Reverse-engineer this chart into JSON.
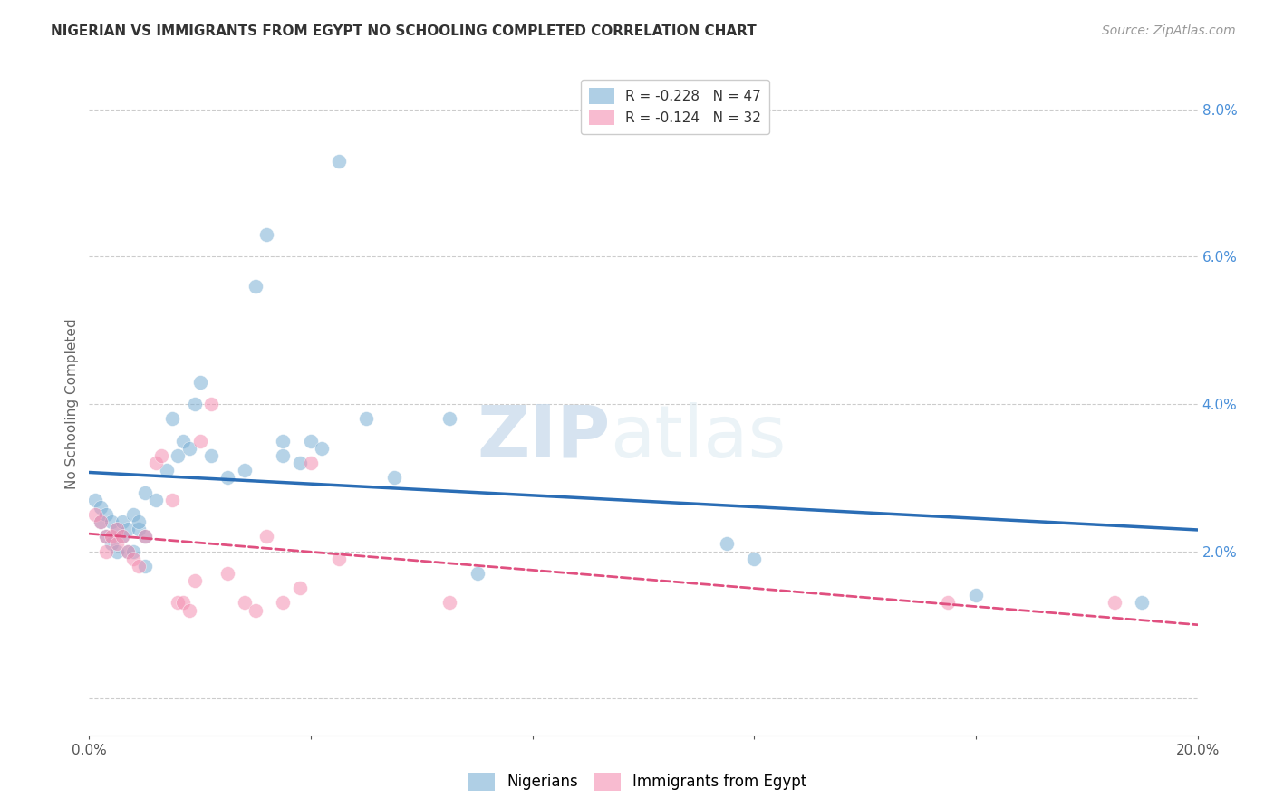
{
  "title": "NIGERIAN VS IMMIGRANTS FROM EGYPT NO SCHOOLING COMPLETED CORRELATION CHART",
  "source": "Source: ZipAtlas.com",
  "ylabel": "No Schooling Completed",
  "xlim": [
    0.0,
    0.2
  ],
  "ylim": [
    -0.005,
    0.085
  ],
  "xticks": [
    0.0,
    0.04,
    0.08,
    0.12,
    0.16,
    0.2
  ],
  "yticks": [
    0.0,
    0.02,
    0.04,
    0.06,
    0.08
  ],
  "ytick_labels": [
    "",
    "2.0%",
    "4.0%",
    "6.0%",
    "8.0%"
  ],
  "xtick_labels": [
    "0.0%",
    "",
    "",
    "",
    "",
    "20.0%"
  ],
  "nigerian_color": "#7bafd4",
  "egypt_color": "#f48fb1",
  "nigerian_line_color": "#2a6db5",
  "egypt_line_color": "#e05080",
  "nigerian_x": [
    0.001,
    0.002,
    0.002,
    0.003,
    0.003,
    0.004,
    0.004,
    0.005,
    0.005,
    0.006,
    0.006,
    0.007,
    0.007,
    0.008,
    0.008,
    0.009,
    0.009,
    0.01,
    0.01,
    0.01,
    0.012,
    0.014,
    0.015,
    0.016,
    0.017,
    0.018,
    0.019,
    0.02,
    0.022,
    0.025,
    0.028,
    0.03,
    0.032,
    0.035,
    0.035,
    0.038,
    0.04,
    0.042,
    0.045,
    0.05,
    0.055,
    0.065,
    0.07,
    0.115,
    0.12,
    0.16,
    0.19
  ],
  "nigerian_y": [
    0.027,
    0.026,
    0.024,
    0.025,
    0.022,
    0.024,
    0.021,
    0.023,
    0.02,
    0.024,
    0.022,
    0.02,
    0.023,
    0.025,
    0.02,
    0.023,
    0.024,
    0.028,
    0.022,
    0.018,
    0.027,
    0.031,
    0.038,
    0.033,
    0.035,
    0.034,
    0.04,
    0.043,
    0.033,
    0.03,
    0.031,
    0.056,
    0.063,
    0.035,
    0.033,
    0.032,
    0.035,
    0.034,
    0.073,
    0.038,
    0.03,
    0.038,
    0.017,
    0.021,
    0.019,
    0.014,
    0.013
  ],
  "egypt_x": [
    0.001,
    0.002,
    0.003,
    0.003,
    0.004,
    0.005,
    0.005,
    0.006,
    0.007,
    0.008,
    0.009,
    0.01,
    0.012,
    0.013,
    0.015,
    0.016,
    0.017,
    0.018,
    0.019,
    0.02,
    0.022,
    0.025,
    0.028,
    0.03,
    0.032,
    0.035,
    0.038,
    0.04,
    0.045,
    0.065,
    0.155,
    0.185
  ],
  "egypt_y": [
    0.025,
    0.024,
    0.022,
    0.02,
    0.022,
    0.023,
    0.021,
    0.022,
    0.02,
    0.019,
    0.018,
    0.022,
    0.032,
    0.033,
    0.027,
    0.013,
    0.013,
    0.012,
    0.016,
    0.035,
    0.04,
    0.017,
    0.013,
    0.012,
    0.022,
    0.013,
    0.015,
    0.032,
    0.019,
    0.013,
    0.013,
    0.013
  ],
  "watermark_zip": "ZIP",
  "watermark_atlas": "atlas",
  "background_color": "#ffffff"
}
